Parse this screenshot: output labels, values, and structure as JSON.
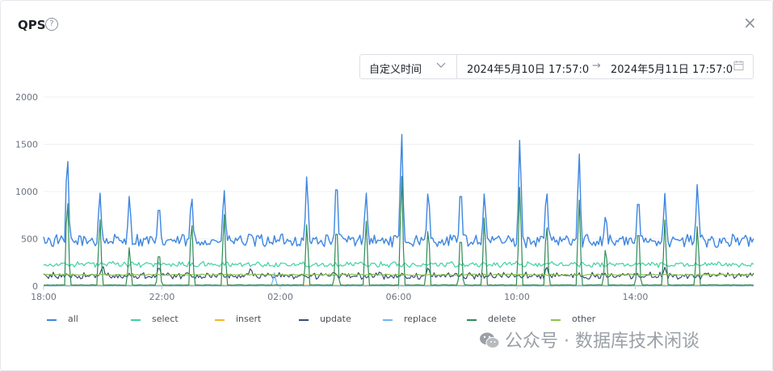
{
  "header": {
    "title": "QPS",
    "help_icon": "?",
    "close_icon": "×"
  },
  "date_range": {
    "mode": "自定义时间",
    "start": "2024年5月10日 17:57:0",
    "separator": "→",
    "end": "2024年5月11日 17:57:0"
  },
  "watermark": "公众号 · 数据库技术闲谈",
  "chart_data": {
    "type": "line",
    "y_ticks": [
      "0",
      "500",
      "1000",
      "1500",
      "2000"
    ],
    "ylim": [
      0,
      2000
    ],
    "x_ticks": [
      "18:00",
      "22:00",
      "02:00",
      "06:00",
      "10:00",
      "14:00"
    ],
    "x_start_hour": 18,
    "x_end_hour": 42,
    "grid": true,
    "legend_position": "bottom",
    "series": [
      {
        "name": "all",
        "color": "#3d86e0",
        "base": 480,
        "noise": 60,
        "spikes": [
          [
            18.8,
            1530
          ],
          [
            19.9,
            1040
          ],
          [
            20.9,
            1000
          ],
          [
            21.9,
            940
          ],
          [
            23.0,
            1030
          ],
          [
            24.1,
            1070
          ],
          [
            26.9,
            1230
          ],
          [
            27.9,
            1250
          ],
          [
            28.9,
            1040
          ],
          [
            30.1,
            1730
          ],
          [
            31.0,
            1100
          ],
          [
            32.1,
            1150
          ],
          [
            32.9,
            1030
          ],
          [
            34.1,
            1660
          ],
          [
            35.0,
            1100
          ],
          [
            36.1,
            1500
          ],
          [
            37.0,
            790
          ],
          [
            38.1,
            1030
          ],
          [
            39.0,
            980
          ],
          [
            40.1,
            1140
          ]
        ]
      },
      {
        "name": "select",
        "color": "#3fd1a3",
        "base": 230,
        "noise": 25,
        "spikes": []
      },
      {
        "name": "insert",
        "color": "#f5b81f",
        "base": 8,
        "noise": 2,
        "spikes": []
      },
      {
        "name": "update",
        "color": "#3a4a7a",
        "base": 110,
        "noise": 30,
        "spikes": [
          [
            20.0,
            230
          ],
          [
            21.9,
            220
          ],
          [
            25.0,
            200
          ],
          [
            31.0,
            210
          ],
          [
            35.0,
            220
          ],
          [
            39.0,
            200
          ]
        ]
      },
      {
        "name": "replace",
        "color": "#6cb6f5",
        "base": 5,
        "noise": 2,
        "spikes": [
          [
            25.8,
            140
          ]
        ]
      },
      {
        "name": "delete",
        "color": "#2e8b57",
        "base": 12,
        "noise": 3,
        "spikes": [
          [
            18.8,
            1090
          ],
          [
            19.9,
            780
          ],
          [
            20.9,
            450
          ],
          [
            21.9,
            440
          ],
          [
            23.0,
            800
          ],
          [
            24.1,
            840
          ],
          [
            26.9,
            720
          ],
          [
            27.9,
            780
          ],
          [
            28.9,
            760
          ],
          [
            30.1,
            1290
          ],
          [
            31.0,
            720
          ],
          [
            32.1,
            660
          ],
          [
            32.9,
            800
          ],
          [
            34.1,
            1160
          ],
          [
            35.0,
            770
          ],
          [
            36.1,
            1010
          ],
          [
            37.0,
            470
          ],
          [
            38.1,
            760
          ],
          [
            39.0,
            700
          ],
          [
            40.1,
            700
          ]
        ]
      },
      {
        "name": "other",
        "color": "#8bc34a",
        "base": 120,
        "noise": 6,
        "spikes": []
      }
    ]
  }
}
